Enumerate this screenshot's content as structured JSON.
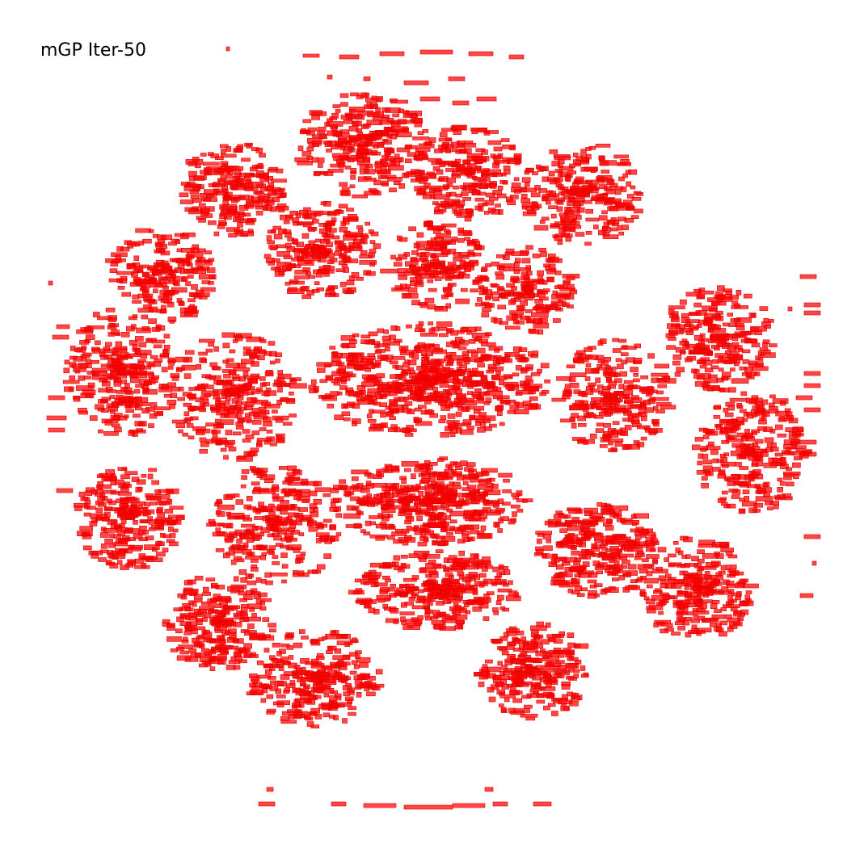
{
  "title": "mGP Iter-50",
  "colors": {
    "cell_fill": "#ff0000",
    "cell_stroke": "#e00000",
    "background": "#ffffff"
  },
  "clusters": [
    {
      "id": "top-center"
    },
    {
      "id": "top-left"
    },
    {
      "id": "top-mid"
    },
    {
      "id": "top-right"
    },
    {
      "id": "upper-left"
    },
    {
      "id": "upper-mid-left"
    },
    {
      "id": "upper-center"
    },
    {
      "id": "upper-mid-right"
    },
    {
      "id": "right-upper"
    },
    {
      "id": "left-mid"
    },
    {
      "id": "center-core"
    },
    {
      "id": "mid-left"
    },
    {
      "id": "mid-right"
    },
    {
      "id": "right-mid"
    },
    {
      "id": "left-lower"
    },
    {
      "id": "center-lower"
    },
    {
      "id": "lower-left"
    },
    {
      "id": "lower-center"
    },
    {
      "id": "lower-right"
    },
    {
      "id": "right-lower"
    },
    {
      "id": "bottom-left"
    },
    {
      "id": "bottom-center"
    },
    {
      "id": "bottom-right"
    }
  ]
}
